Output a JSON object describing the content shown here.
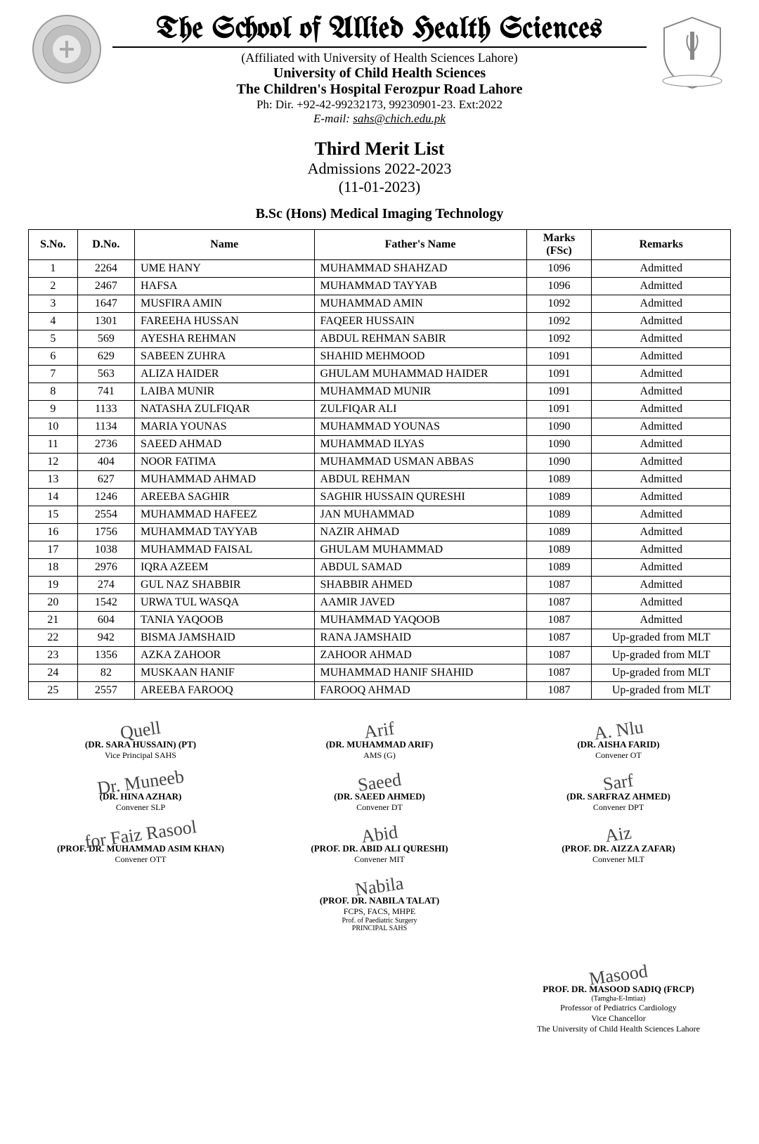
{
  "header": {
    "school_title": "The School of Allied Health Sciences",
    "affiliation": "(Affiliated with University of Health Sciences Lahore)",
    "university": "University of Child Health Sciences",
    "hospital": "The Children's Hospital Ferozpur Road Lahore",
    "phone": "Ph: Dir. +92-42-99232173, 99230901-23. Ext:2022",
    "email_label": "E-mail:",
    "email": "sahs@chich.edu.pk"
  },
  "list": {
    "title": "Third Merit List",
    "session": "Admissions 2022-2023",
    "date": "(11-01-2023)",
    "program": "B.Sc (Hons) Medical Imaging Technology"
  },
  "table": {
    "columns": [
      "S.No.",
      "D.No.",
      "Name",
      "Father's Name",
      "Marks (FSc)",
      "Remarks"
    ],
    "rows": [
      [
        "1",
        "2264",
        "UME HANY",
        "MUHAMMAD SHAHZAD",
        "1096",
        "Admitted"
      ],
      [
        "2",
        "2467",
        "HAFSA",
        "MUHAMMAD TAYYAB",
        "1096",
        "Admitted"
      ],
      [
        "3",
        "1647",
        "MUSFIRA AMIN",
        "MUHAMMAD AMIN",
        "1092",
        "Admitted"
      ],
      [
        "4",
        "1301",
        "FAREEHA HUSSAN",
        "FAQEER HUSSAIN",
        "1092",
        "Admitted"
      ],
      [
        "5",
        "569",
        "AYESHA REHMAN",
        "ABDUL REHMAN SABIR",
        "1092",
        "Admitted"
      ],
      [
        "6",
        "629",
        "SABEEN ZUHRA",
        "SHAHID MEHMOOD",
        "1091",
        "Admitted"
      ],
      [
        "7",
        "563",
        "ALIZA HAIDER",
        "GHULAM MUHAMMAD HAIDER",
        "1091",
        "Admitted"
      ],
      [
        "8",
        "741",
        "LAIBA MUNIR",
        "MUHAMMAD MUNIR",
        "1091",
        "Admitted"
      ],
      [
        "9",
        "1133",
        "NATASHA ZULFIQAR",
        "ZULFIQAR ALI",
        "1091",
        "Admitted"
      ],
      [
        "10",
        "1134",
        "MARIA YOUNAS",
        "MUHAMMAD YOUNAS",
        "1090",
        "Admitted"
      ],
      [
        "11",
        "2736",
        "SAEED AHMAD",
        "MUHAMMAD ILYAS",
        "1090",
        "Admitted"
      ],
      [
        "12",
        "404",
        "NOOR FATIMA",
        "MUHAMMAD USMAN ABBAS",
        "1090",
        "Admitted"
      ],
      [
        "13",
        "627",
        "MUHAMMAD AHMAD",
        "ABDUL REHMAN",
        "1089",
        "Admitted"
      ],
      [
        "14",
        "1246",
        "AREEBA SAGHIR",
        "SAGHIR HUSSAIN QURESHI",
        "1089",
        "Admitted"
      ],
      [
        "15",
        "2554",
        "MUHAMMAD HAFEEZ",
        "JAN MUHAMMAD",
        "1089",
        "Admitted"
      ],
      [
        "16",
        "1756",
        "MUHAMMAD TAYYAB",
        "NAZIR AHMAD",
        "1089",
        "Admitted"
      ],
      [
        "17",
        "1038",
        "MUHAMMAD FAISAL",
        "GHULAM MUHAMMAD",
        "1089",
        "Admitted"
      ],
      [
        "18",
        "2976",
        "IQRA AZEEM",
        "ABDUL SAMAD",
        "1089",
        "Admitted"
      ],
      [
        "19",
        "274",
        "GUL NAZ SHABBIR",
        "SHABBIR AHMED",
        "1087",
        "Admitted"
      ],
      [
        "20",
        "1542",
        "URWA TUL WASQA",
        "AAMIR JAVED",
        "1087",
        "Admitted"
      ],
      [
        "21",
        "604",
        "TANIA YAQOOB",
        "MUHAMMAD YAQOOB",
        "1087",
        "Admitted"
      ],
      [
        "22",
        "942",
        "BISMA JAMSHAID",
        "RANA JAMSHAID",
        "1087",
        "Up-graded from MLT"
      ],
      [
        "23",
        "1356",
        "AZKA ZAHOOR",
        "ZAHOOR AHMAD",
        "1087",
        "Up-graded from MLT"
      ],
      [
        "24",
        "82",
        "MUSKAAN HANIF",
        "MUHAMMAD HANIF SHAHID",
        "1087",
        "Up-graded from MLT"
      ],
      [
        "25",
        "2557",
        "AREEBA FAROOQ",
        "FAROOQ AHMAD",
        "1087",
        "Up-graded from MLT"
      ]
    ]
  },
  "sigs": {
    "left": [
      {
        "scrib": "Quell",
        "name": "(DR. SARA HUSSAIN) (PT)",
        "role": "Vice Principal SAHS"
      },
      {
        "scrib": "Dr. Muneeb",
        "name": "(DR. HINA AZHAR)",
        "role": "Convener SLP"
      },
      {
        "scrib": "for Faiz Rasool",
        "name": "(PROF. DR. MUHAMMAD ASIM KHAN)",
        "role": "Convener OTT"
      }
    ],
    "mid": [
      {
        "scrib": "Arif",
        "name": "(DR. MUHAMMAD ARIF)",
        "role": "AMS (G)"
      },
      {
        "scrib": "Saeed",
        "name": "(DR. SAEED AHMED)",
        "role": "Convener DT"
      },
      {
        "scrib": "Abid",
        "name": "(PROF. DR. ABID ALI QURESHI)",
        "role": "Convener MIT"
      },
      {
        "scrib": "Nabila",
        "name": "(PROF. DR. NABILA TALAT)",
        "role": "FCPS, FACS, MHPE",
        "role2": "Prof. of Paediatric Surgery",
        "role3": "PRINCIPAL SAHS"
      }
    ],
    "right": [
      {
        "scrib": "A. Nlu",
        "name": "(DR. AISHA FARID)",
        "role": "Convener OT"
      },
      {
        "scrib": "Sarf",
        "name": "(DR. SARFRAZ AHMED)",
        "role": "Convener DPT"
      },
      {
        "scrib": "Aiz",
        "name": "(PROF. DR. AIZZA ZAFAR)",
        "role": "Convener MLT"
      }
    ],
    "bottom": {
      "scrib": "Masood",
      "name": "PROF. DR. MASOOD SADIQ (FRCP)",
      "l1": "(Tamgha-E-Imtiaz)",
      "l2": "Professor of Pediatrics Cardiology",
      "l3": "Vice Chancellor",
      "l4": "The University of Child Health Sciences Lahore"
    }
  }
}
